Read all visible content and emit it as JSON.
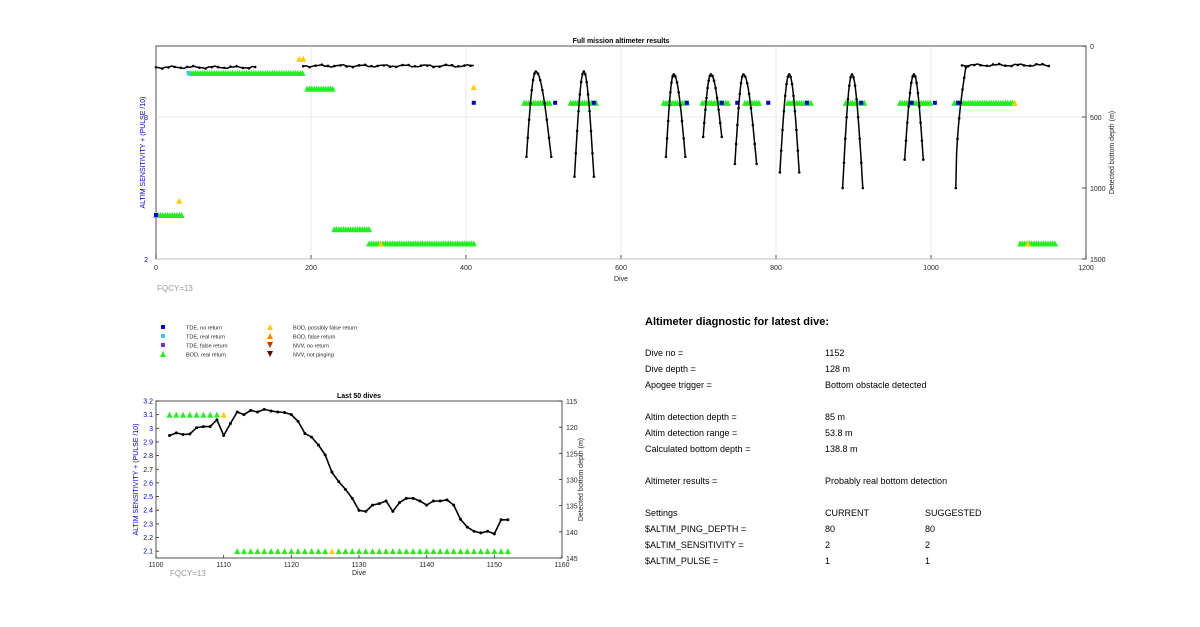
{
  "colors": {
    "tde_no_return": "#0000cc",
    "tde_real_return": "#33ccff",
    "tde_false_return": "#7733cc",
    "bod_real_return": "#22ee22",
    "bod_possibly_false": "#ffcc00",
    "bod_false_return": "#ff8800",
    "nvv_no_return": "#cc3300",
    "nvv_not_pinging": "#660000",
    "left_axis_label": "#0000cc",
    "depth_line": "#000000",
    "fqcy_text": "#999999"
  },
  "fqcy_label": "FQCY=13",
  "legend": [
    {
      "label": "TDE, no return",
      "marker": "square",
      "color": "#0000cc"
    },
    {
      "label": "TDE, real return",
      "marker": "square",
      "color": "#33ccff"
    },
    {
      "label": "TDE, false return",
      "marker": "square",
      "color": "#7733cc"
    },
    {
      "label": "BOD, real return",
      "marker": "triangle-up",
      "color": "#22ee22"
    },
    {
      "label": "BOD, possibly false return",
      "marker": "triangle-up",
      "color": "#ffcc00"
    },
    {
      "label": "BOD, false return",
      "marker": "triangle-up",
      "color": "#ff8800"
    },
    {
      "label": "NVV, no return",
      "marker": "triangle-down",
      "color": "#cc3300"
    },
    {
      "label": "NVV, not pinging",
      "marker": "triangle-down",
      "color": "#660000"
    }
  ],
  "chart_data": [
    {
      "type": "scatter",
      "title": "Full mission altimeter results",
      "xlabel": "Dive",
      "ylabel_left": "ALTIM SENSITIVITY + (PULSE /10)",
      "ylabel_right": "Detected bottom depth (m)",
      "xlim": [
        0,
        1200
      ],
      "ylim_left": [
        2,
        3.5
      ],
      "ylim_right_reversed": [
        0,
        1500
      ],
      "xticks": [
        "0",
        "200",
        "400",
        "600",
        "800",
        "1000",
        "1200"
      ],
      "yticks_left": [
        "2",
        "3"
      ],
      "yticks_right": [
        "0",
        "500",
        "1000",
        "1500"
      ],
      "grid": true,
      "marker_series": [
        {
          "name": "BOD, real return",
          "segments": [
            [
              45,
              190,
              3.31
            ],
            [
              195,
              230,
              3.2
            ],
            [
              230,
              275,
              2.21
            ],
            [
              275,
              410,
              2.11
            ],
            [
              0,
              35,
              2.31
            ],
            [
              475,
              510,
              3.1
            ],
            [
              535,
              570,
              3.1
            ],
            [
              655,
              685,
              3.1
            ],
            [
              705,
              740,
              3.1
            ],
            [
              760,
              780,
              3.1
            ],
            [
              815,
              845,
              3.1
            ],
            [
              890,
              915,
              3.1
            ],
            [
              960,
              1000,
              3.1
            ],
            [
              1030,
              1110,
              3.1
            ],
            [
              1115,
              1160,
              2.11
            ]
          ]
        },
        {
          "name": "BOD, possibly false return",
          "points": [
            [
              185,
              3.41
            ],
            [
              190,
              3.41
            ],
            [
              30,
              2.41
            ],
            [
              410,
              3.21
            ],
            [
              290,
              2.11
            ],
            [
              1108,
              3.1
            ],
            [
              1125,
              2.11
            ]
          ]
        },
        {
          "name": "TDE, no return",
          "points": [
            [
              410,
              3.1
            ],
            [
              515,
              3.1
            ],
            [
              565,
              3.1
            ],
            [
              685,
              3.1
            ],
            [
              730,
              3.1
            ],
            [
              750,
              3.1
            ],
            [
              790,
              3.1
            ],
            [
              840,
              3.1
            ],
            [
              910,
              3.1
            ],
            [
              975,
              3.1
            ],
            [
              1005,
              3.1
            ],
            [
              1035,
              3.1
            ],
            [
              0,
              2.31
            ]
          ]
        },
        {
          "name": "TDE, real return",
          "points": [
            [
              42,
              3.31
            ]
          ]
        }
      ],
      "depth_series": {
        "flat_segments": [
          [
            0,
            130,
            150
          ],
          [
            190,
            410,
            140
          ],
          [
            1040,
            1152,
            135
          ]
        ],
        "dive_arcs": [
          {
            "start": 478,
            "peak": 490,
            "peak_depth": 180,
            "end": 510,
            "deep": 780
          },
          {
            "start": 540,
            "peak": 552,
            "peak_depth": 180,
            "end": 565,
            "deep": 920
          },
          {
            "start": 658,
            "peak": 668,
            "peak_depth": 200,
            "end": 683,
            "deep": 780
          },
          {
            "start": 706,
            "peak": 716,
            "peak_depth": 200,
            "end": 730,
            "deep": 640
          },
          {
            "start": 747,
            "peak": 758,
            "peak_depth": 200,
            "end": 775,
            "deep": 830
          },
          {
            "start": 805,
            "peak": 817,
            "peak_depth": 200,
            "end": 830,
            "deep": 890
          },
          {
            "start": 886,
            "peak": 898,
            "peak_depth": 200,
            "end": 912,
            "deep": 1000
          },
          {
            "start": 966,
            "peak": 978,
            "peak_depth": 200,
            "end": 990,
            "deep": 800
          }
        ],
        "ramp": {
          "start": 1032,
          "start_depth": 1000,
          "end": 1045,
          "end_depth": 150
        }
      }
    },
    {
      "type": "scatter",
      "title": "Last 50 dives",
      "xlabel": "Dive",
      "ylabel_left": "ALTIM SENSITIVITY + (PULSE /10)",
      "ylabel_right": "Detected bottom depth (m)",
      "xlim": [
        1100,
        1160
      ],
      "ylim_left": [
        2.05,
        3.2
      ],
      "ylim_right_reversed": [
        115,
        145
      ],
      "xticks": [
        "1100",
        "1110",
        "1120",
        "1130",
        "1140",
        "1150",
        "1160"
      ],
      "yticks_left": [
        "2.1",
        "2.2",
        "2.3",
        "2.4",
        "2.5",
        "2.6",
        "2.7",
        "2.8",
        "2.9",
        "3",
        "3.1",
        "3.2"
      ],
      "yticks_right": [
        "115",
        "120",
        "125",
        "130",
        "135",
        "140",
        "145"
      ],
      "grid": false,
      "triangles_top": {
        "y": 3.1,
        "green": [
          1102,
          1103,
          1104,
          1105,
          1106,
          1107,
          1108,
          1109
        ],
        "yellow": [
          1110
        ]
      },
      "triangles_bottom": {
        "y": 2.1,
        "from": 1112,
        "to": 1152,
        "yellow": [
          1126
        ]
      },
      "depth_x": [
        1102,
        1103,
        1104,
        1105,
        1106,
        1107,
        1108,
        1109,
        1110,
        1111,
        1112,
        1113,
        1114,
        1115,
        1116,
        1117,
        1118,
        1119,
        1120,
        1121,
        1122,
        1123,
        1124,
        1125,
        1126,
        1127,
        1128,
        1129,
        1130,
        1131,
        1132,
        1133,
        1134,
        1135,
        1136,
        1137,
        1138,
        1139,
        1140,
        1141,
        1142,
        1143,
        1144,
        1145,
        1146,
        1147,
        1148,
        1149,
        1150,
        1151,
        1152
      ],
      "depth_y": [
        121.6,
        121.1,
        121.4,
        121.3,
        120.1,
        119.9,
        119.9,
        118.6,
        121.6,
        119.3,
        117.1,
        117.6,
        116.8,
        117.1,
        116.6,
        116.9,
        117.1,
        117.2,
        117.6,
        118.9,
        121.2,
        121.9,
        123.4,
        125.3,
        128.6,
        130.4,
        131.9,
        133.6,
        135.9,
        136.1,
        134.9,
        134.6,
        134.1,
        136.1,
        134.4,
        133.6,
        133.6,
        134.1,
        134.9,
        134.1,
        134.1,
        133.9,
        134.9,
        137.6,
        139.1,
        139.9,
        140.2,
        139.9,
        140.4,
        137.7,
        137.7
      ]
    }
  ],
  "diagnostic": {
    "title": "Altimeter diagnostic for latest dive:",
    "rows": [
      {
        "label": "Dive no =",
        "value": "1152"
      },
      {
        "label": "Dive depth =",
        "value": "128 m"
      },
      {
        "label": "Apogee trigger =",
        "value": "Bottom obstacle detected"
      },
      {
        "label": "Altim detection depth =",
        "value": "85 m"
      },
      {
        "label": "Altim detection range =",
        "value": "53.8 m"
      },
      {
        "label": "Calculated bottom depth =",
        "value": "138.8 m"
      },
      {
        "label": "Altimeter results =",
        "value": "Probably real bottom detection"
      }
    ],
    "settings_header": {
      "label": "Settings",
      "current": "CURRENT",
      "suggested": "SUGGESTED"
    },
    "settings": [
      {
        "label": "$ALTIM_PING_DEPTH =",
        "current": "80",
        "suggested": "80"
      },
      {
        "label": "$ALTIM_SENSITIVITY =",
        "current": "2",
        "suggested": "2"
      },
      {
        "label": "$ALTIM_PULSE =",
        "current": "1",
        "suggested": "1"
      }
    ]
  }
}
